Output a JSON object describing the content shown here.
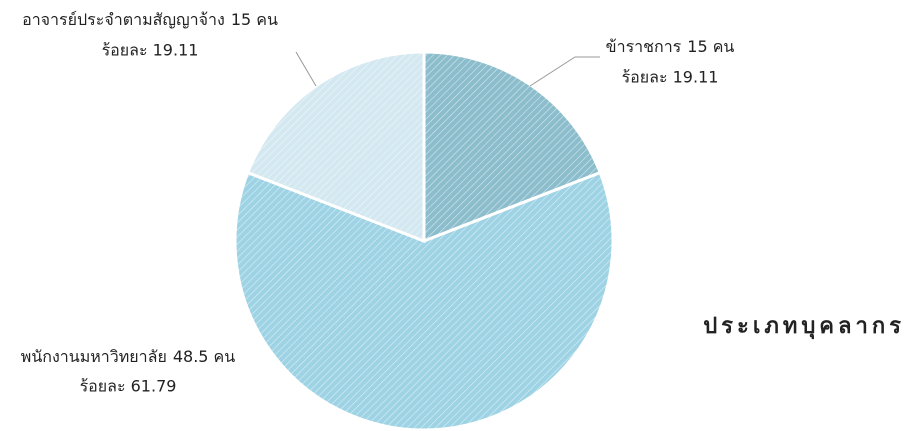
{
  "chart_data": {
    "type": "pie",
    "title": "ประเภทบุคลากร",
    "categories": [
      "ข้าราชการ",
      "พนักงานมหาวิทยาลัย",
      "อาจารย์ประจำตามสัญญาจ้าง"
    ],
    "count_labels": [
      "15 คน",
      "48.5 คน",
      "15 คน"
    ],
    "values": [
      19.11,
      61.79,
      19.11
    ],
    "value_labels": [
      "ร้อยละ 19.11",
      "ร้อยละ 61.79",
      "ร้อยละ 19.11"
    ],
    "colors": [
      "#8cbdcc",
      "#9dd3e4",
      "#d3e8f0"
    ]
  }
}
